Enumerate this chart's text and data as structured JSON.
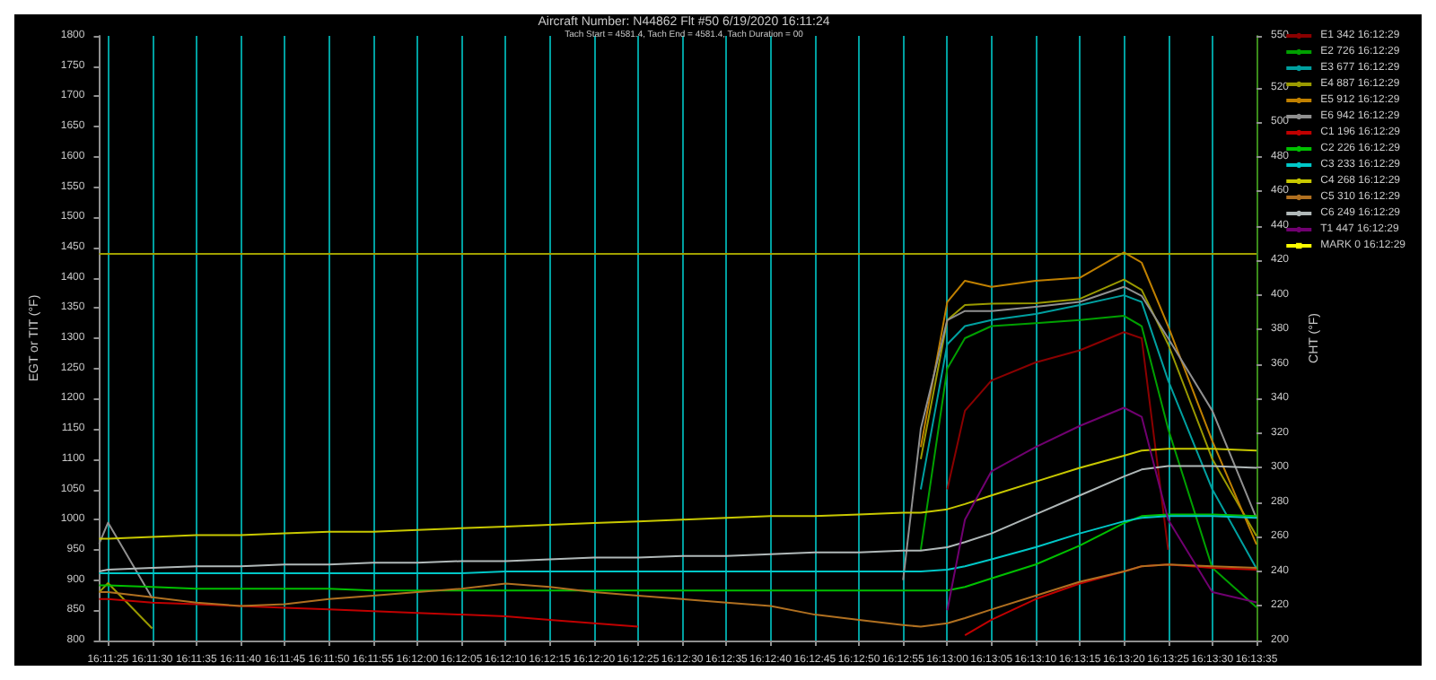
{
  "chart_data": {
    "type": "line",
    "title": "Aircraft Number: N44862 Flt #50 6/19/2020 16:11:24",
    "subtitle": "Tach Start = 4581.4, Tach End = 4581.4, Tach Duration = 00",
    "ylabel": "EGT or TIT (°F)",
    "y2label": "CHT (°F)",
    "x": [
      16.19,
      16.190278,
      16.191667,
      16.193056,
      16.194444,
      16.195833,
      16.197222,
      16.198611,
      16.2,
      16.201389,
      16.202778,
      16.204167,
      16.205556,
      16.206944,
      16.208333,
      16.209722,
      16.211111,
      16.2125,
      16.213889,
      16.215278,
      16.215833,
      16.216667,
      16.217222,
      16.218056,
      16.219444,
      16.220833,
      16.222222,
      16.222778,
      16.223611,
      16.225,
      16.226389
    ],
    "xlim": [
      16.19,
      16.226389
    ],
    "xticks": [
      {
        "value": 16.190278,
        "label": "16:11:25"
      },
      {
        "value": 16.191667,
        "label": "16:11:30"
      },
      {
        "value": 16.193056,
        "label": "16:11:35"
      },
      {
        "value": 16.194444,
        "label": "16:11:40"
      },
      {
        "value": 16.195833,
        "label": "16:11:45"
      },
      {
        "value": 16.197222,
        "label": "16:11:50"
      },
      {
        "value": 16.198611,
        "label": "16:11:55"
      },
      {
        "value": 16.2,
        "label": "16:12:00"
      },
      {
        "value": 16.201389,
        "label": "16:12:05"
      },
      {
        "value": 16.202778,
        "label": "16:12:10"
      },
      {
        "value": 16.204167,
        "label": "16:12:15"
      },
      {
        "value": 16.205556,
        "label": "16:12:20"
      },
      {
        "value": 16.206944,
        "label": "16:12:25"
      },
      {
        "value": 16.208333,
        "label": "16:12:30"
      },
      {
        "value": 16.209722,
        "label": "16:12:35"
      },
      {
        "value": 16.211111,
        "label": "16:12:40"
      },
      {
        "value": 16.2125,
        "label": "16:12:45"
      },
      {
        "value": 16.213889,
        "label": "16:12:50"
      },
      {
        "value": 16.215278,
        "label": "16:12:55"
      },
      {
        "value": 16.216667,
        "label": "16:13:00"
      },
      {
        "value": 16.218056,
        "label": "16:13:05"
      },
      {
        "value": 16.219444,
        "label": "16:13:10"
      },
      {
        "value": 16.220833,
        "label": "16:13:15"
      },
      {
        "value": 16.222222,
        "label": "16:13:20"
      },
      {
        "value": 16.223611,
        "label": "16:13:25"
      },
      {
        "value": 16.225,
        "label": "16:13:30"
      },
      {
        "value": 16.226389,
        "label": "16:13:35"
      }
    ],
    "ylim": [
      800,
      1800
    ],
    "yticks": [
      800,
      850,
      900,
      950,
      1000,
      1050,
      1100,
      1150,
      1200,
      1250,
      1300,
      1350,
      1400,
      1450,
      1500,
      1550,
      1600,
      1650,
      1700,
      1750,
      1800
    ],
    "y2lim": [
      200,
      550
    ],
    "y2ticks": [
      200,
      220,
      240,
      260,
      280,
      300,
      320,
      340,
      360,
      380,
      400,
      420,
      440,
      460,
      480,
      500,
      520,
      550
    ],
    "grid": "x",
    "legend": "right",
    "marker": "none",
    "ref_lines": [
      {
        "axis": "y",
        "value": 1440,
        "color": "#a0a000"
      }
    ],
    "series": [
      {
        "name": "E1 342 16:12:29",
        "color": "#8b0000",
        "values": [
          null,
          null,
          null,
          null,
          null,
          null,
          null,
          null,
          null,
          null,
          null,
          null,
          null,
          null,
          null,
          null,
          null,
          null,
          null,
          null,
          null,
          1050,
          1180,
          1230,
          1260,
          1280,
          1310,
          1300,
          950,
          null,
          null
        ]
      },
      {
        "name": "E2 726 16:12:29",
        "color": "#00a000",
        "values": [
          null,
          null,
          null,
          null,
          null,
          null,
          null,
          null,
          null,
          null,
          null,
          null,
          null,
          null,
          null,
          null,
          null,
          null,
          null,
          null,
          950,
          1250,
          1300,
          1320,
          1325,
          1330,
          1337,
          1320,
          1150,
          920,
          855
        ]
      },
      {
        "name": "E3 677 16:12:29",
        "color": "#00a0a0",
        "values": [
          null,
          null,
          null,
          null,
          null,
          null,
          null,
          null,
          null,
          null,
          null,
          null,
          null,
          null,
          null,
          null,
          null,
          null,
          null,
          null,
          1050,
          1290,
          1320,
          1330,
          1340,
          1355,
          1371,
          1360,
          1230,
          1050,
          919
        ]
      },
      {
        "name": "E4 887 16:12:29",
        "color": "#9a9a00",
        "values": [
          880,
          895,
          820,
          null,
          null,
          null,
          null,
          null,
          null,
          null,
          null,
          null,
          null,
          null,
          null,
          null,
          null,
          null,
          null,
          null,
          1100,
          1330,
          1355,
          1357,
          1358,
          1365,
          1397,
          1380,
          1290,
          1100,
          973
        ]
      },
      {
        "name": "E5 912 16:12:29",
        "color": "#c08000",
        "values": [
          null,
          null,
          null,
          null,
          null,
          null,
          null,
          null,
          null,
          null,
          null,
          null,
          null,
          null,
          null,
          null,
          null,
          null,
          null,
          null,
          1120,
          1360,
          1395,
          1385,
          1395,
          1400,
          1442,
          1425,
          1320,
          1130,
          959
        ]
      },
      {
        "name": "E6 942 16:12:29",
        "color": "#909090",
        "values": [
          960,
          995,
          870,
          null,
          null,
          null,
          null,
          null,
          null,
          null,
          null,
          null,
          null,
          null,
          null,
          null,
          null,
          null,
          null,
          900,
          1150,
          1330,
          1345,
          1345,
          1352,
          1360,
          1385,
          1370,
          1300,
          1180,
          1002
        ]
      },
      {
        "name": "C1 196 16:12:29",
        "color": "#c00000",
        "axis": "y2",
        "values": [
          224,
          224,
          222,
          221,
          220,
          219,
          218,
          217,
          216,
          215,
          214,
          212,
          210,
          208,
          null,
          null,
          null,
          null,
          null,
          null,
          null,
          null,
          203,
          212,
          224,
          233,
          240,
          243,
          244,
          242,
          241
        ]
      },
      {
        "name": "C2 226 16:12:29",
        "color": "#00c000",
        "axis": "y2",
        "values": [
          232,
          232,
          231,
          230,
          230,
          230,
          230,
          229,
          229,
          229,
          229,
          229,
          229,
          229,
          229,
          229,
          229,
          229,
          229,
          229,
          229,
          229,
          231,
          236,
          244,
          255,
          268,
          272,
          273,
          273,
          272
        ]
      },
      {
        "name": "C3 233 16:12:29",
        "color": "#00c8c8",
        "axis": "y2",
        "values": [
          239,
          239,
          239,
          239,
          239,
          239,
          239,
          239,
          239,
          239,
          240,
          240,
          240,
          240,
          240,
          240,
          240,
          240,
          240,
          240,
          240,
          241,
          243,
          247,
          254,
          262,
          269,
          271,
          272,
          272,
          271
        ]
      },
      {
        "name": "C4 268 16:12:29",
        "color": "#c8c800",
        "axis": "y2",
        "values": [
          259,
          259,
          260,
          261,
          261,
          262,
          263,
          263,
          264,
          265,
          266,
          267,
          268,
          269,
          270,
          271,
          272,
          272,
          273,
          274,
          274,
          276,
          279,
          284,
          292,
          300,
          307,
          310,
          311,
          311,
          310
        ]
      },
      {
        "name": "C5 310 16:12:29",
        "color": "#b07020",
        "axis": "y2",
        "values": [
          228,
          228,
          225,
          222,
          220,
          221,
          224,
          226,
          228,
          230,
          233,
          231,
          228,
          226,
          224,
          222,
          220,
          215,
          212,
          209,
          208,
          210,
          213,
          218,
          226,
          234,
          240,
          243,
          244,
          243,
          242
        ]
      },
      {
        "name": "C6 249 16:12:29",
        "color": "#b0b8b8",
        "axis": "y2",
        "values": [
          240,
          241,
          242,
          243,
          243,
          244,
          244,
          245,
          245,
          246,
          246,
          247,
          248,
          248,
          249,
          249,
          250,
          251,
          251,
          252,
          252,
          254,
          257,
          262,
          273,
          284,
          295,
          299,
          301,
          301,
          300
        ]
      },
      {
        "name": "T1 447 16:12:29",
        "color": "#700070",
        "values": [
          null,
          null,
          null,
          null,
          null,
          null,
          null,
          null,
          null,
          null,
          null,
          null,
          null,
          null,
          null,
          null,
          null,
          null,
          null,
          null,
          null,
          850,
          1000,
          1080,
          1120,
          1155,
          1185,
          1170,
          1000,
          880,
          863
        ]
      },
      {
        "name": "MARK 0 16:12:29",
        "color": "#ffff00",
        "marker": "square",
        "values": [
          null,
          null,
          null,
          null,
          null,
          null,
          null,
          null,
          null,
          null,
          null,
          null,
          null,
          null,
          null,
          null,
          null,
          null,
          null,
          null,
          null,
          null,
          null,
          null,
          null,
          null,
          null,
          null,
          null,
          null,
          null
        ]
      }
    ]
  }
}
